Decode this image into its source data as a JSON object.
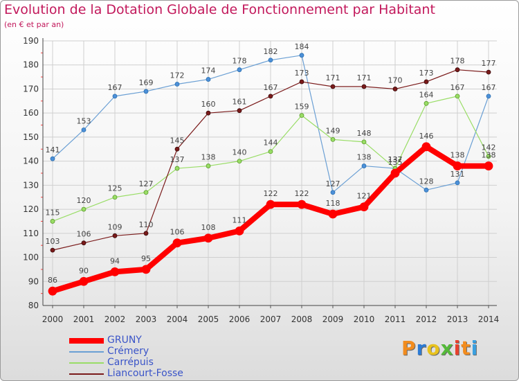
{
  "chart_data": {
    "type": "line",
    "title": "Evolution de la Dotation Globale de Fonctionnement par Habitant",
    "subtitle": "(en € et par an)",
    "xlabel": "",
    "ylabel": "",
    "ylim": [
      80,
      190
    ],
    "yticks": [
      80,
      90,
      100,
      110,
      120,
      130,
      140,
      150,
      160,
      170,
      180,
      190
    ],
    "grid": true,
    "legend_position": "bottom-left",
    "categories": [
      "2000",
      "2001",
      "2002",
      "2003",
      "2004",
      "2005",
      "2006",
      "2007",
      "2008",
      "2009",
      "2010",
      "2011",
      "2012",
      "2013",
      "2014"
    ],
    "series": [
      {
        "name": "GRUNY",
        "color": "#ff0000",
        "values": [
          86,
          90,
          94,
          95,
          106,
          108,
          111,
          122,
          122,
          118,
          121,
          135,
          146,
          138,
          138
        ]
      },
      {
        "name": "Crémery",
        "color": "#6a9fd4",
        "values": [
          141,
          153,
          167,
          169,
          172,
          174,
          178,
          182,
          184,
          127,
          138,
          137,
          128,
          131,
          167
        ]
      },
      {
        "name": "Carrépuis",
        "color": "#99dd66",
        "values": [
          115,
          120,
          125,
          127,
          137,
          138,
          140,
          144,
          159,
          149,
          148,
          137,
          164,
          167,
          142
        ]
      },
      {
        "name": "Liancourt-Fosse",
        "color": "#7a1a1a",
        "values": [
          103,
          106,
          109,
          110,
          145,
          160,
          161,
          167,
          173,
          171,
          171,
          170,
          173,
          178,
          177
        ]
      }
    ],
    "watermark": "Proxiti"
  }
}
